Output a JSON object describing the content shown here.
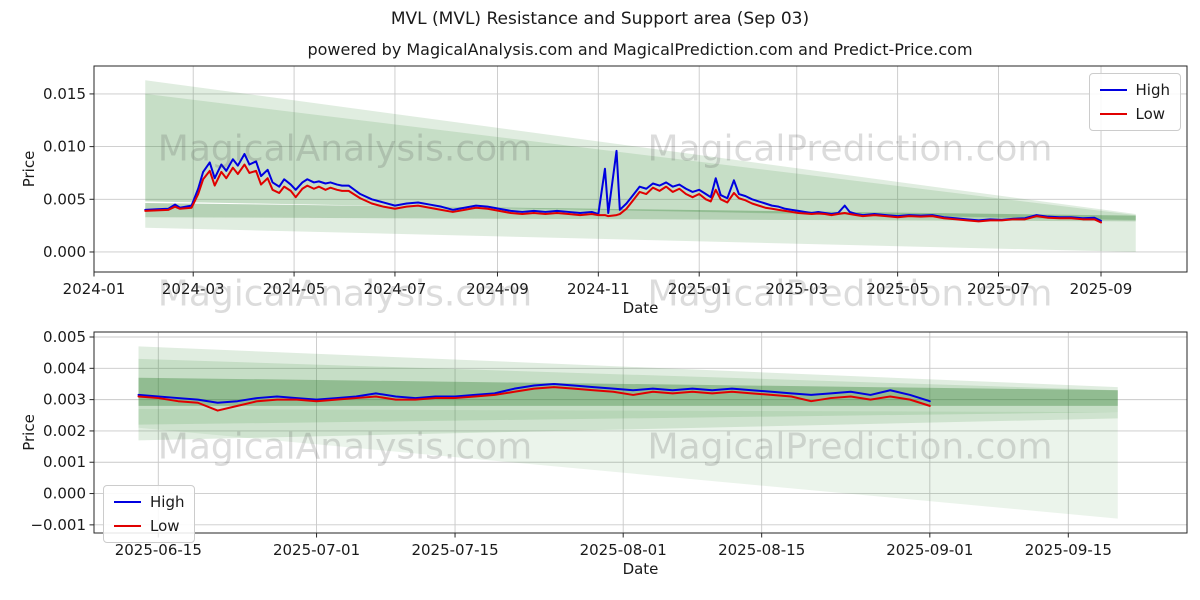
{
  "header": {
    "title": "MVL (MVL) Resistance and Support area (Sep 03)",
    "subtitle": "powered by MagicalAnalysis.com and MagicalPrediction.com and Predict-Price.com"
  },
  "watermarks": {
    "left_text": "MagicalAnalysis.com",
    "right_text": "MagicalPrediction.com"
  },
  "legend": {
    "high_label": "High",
    "low_label": "Low"
  },
  "colors": {
    "high": "#0000e0",
    "low": "#e00000",
    "band_light": "rgba(60,145,60,0.16)",
    "band_faint": "rgba(60,145,60,0.10)",
    "band_dark": "rgba(45,125,45,0.35)",
    "grid": "#c9c9c9",
    "spine": "#262626",
    "text": "#1a1a1a"
  },
  "chart_data": [
    {
      "id": "price-chart-main",
      "type": "line",
      "title": "",
      "xlabel": "Date",
      "ylabel": "Price",
      "grid": true,
      "legend_position": "upper right",
      "x_start": "2024-01-01",
      "x_end": "2025-10-23",
      "ylim": [
        -0.0019,
        0.01765
      ],
      "x_ticks": [
        {
          "date": "2024-01-01",
          "label": "2024-01"
        },
        {
          "date": "2024-03-01",
          "label": "2024-03"
        },
        {
          "date": "2024-05-01",
          "label": "2024-05"
        },
        {
          "date": "2024-07-01",
          "label": "2024-07"
        },
        {
          "date": "2024-09-01",
          "label": "2024-09"
        },
        {
          "date": "2024-11-01",
          "label": "2024-11"
        },
        {
          "date": "2025-01-01",
          "label": "2025-01"
        },
        {
          "date": "2025-03-01",
          "label": "2025-03"
        },
        {
          "date": "2025-05-01",
          "label": "2025-05"
        },
        {
          "date": "2025-07-01",
          "label": "2025-07"
        },
        {
          "date": "2025-09-01",
          "label": "2025-09"
        }
      ],
      "y_ticks": [
        {
          "value": 0.0,
          "label": "0.000"
        },
        {
          "value": 0.005,
          "label": "0.005"
        },
        {
          "value": 0.01,
          "label": "0.010"
        },
        {
          "value": 0.015,
          "label": "0.015"
        }
      ],
      "bands": [
        {
          "fill": "band_light",
          "points": [
            [
              "2024-02-01",
              0.0163
            ],
            [
              "2025-09-22",
              0.0036
            ],
            [
              "2025-09-22",
              0.003
            ],
            [
              "2024-02-01",
              0.0048
            ]
          ]
        },
        {
          "fill": "band_light",
          "points": [
            [
              "2024-02-01",
              0.015
            ],
            [
              "2025-09-22",
              0.0035
            ],
            [
              "2025-09-22",
              0.00305
            ],
            [
              "2024-02-01",
              0.0048
            ]
          ]
        },
        {
          "fill": "band_dark",
          "points": [
            [
              "2024-02-01",
              0.00465
            ],
            [
              "2025-09-22",
              0.00345
            ],
            [
              "2025-09-22",
              0.0029
            ],
            [
              "2024-02-01",
              0.0033
            ]
          ]
        },
        {
          "fill": "band_light",
          "points": [
            [
              "2024-02-01",
              0.0033
            ],
            [
              "2025-09-22",
              0.0029
            ],
            [
              "2025-09-22",
              0.0
            ],
            [
              "2024-02-01",
              0.0023
            ]
          ]
        }
      ],
      "x": [
        "2024-02-01",
        "2024-02-08",
        "2024-02-15",
        "2024-02-19",
        "2024-02-22",
        "2024-02-29",
        "2024-03-04",
        "2024-03-07",
        "2024-03-11",
        "2024-03-14",
        "2024-03-18",
        "2024-03-21",
        "2024-03-25",
        "2024-03-28",
        "2024-04-01",
        "2024-04-04",
        "2024-04-08",
        "2024-04-11",
        "2024-04-15",
        "2024-04-18",
        "2024-04-22",
        "2024-04-25",
        "2024-04-29",
        "2024-05-02",
        "2024-05-06",
        "2024-05-09",
        "2024-05-13",
        "2024-05-16",
        "2024-05-20",
        "2024-05-23",
        "2024-05-27",
        "2024-05-30",
        "2024-06-03",
        "2024-06-10",
        "2024-06-17",
        "2024-06-24",
        "2024-07-01",
        "2024-07-08",
        "2024-07-15",
        "2024-07-22",
        "2024-07-29",
        "2024-08-05",
        "2024-08-12",
        "2024-08-19",
        "2024-08-26",
        "2024-09-02",
        "2024-09-09",
        "2024-09-16",
        "2024-09-23",
        "2024-09-30",
        "2024-10-07",
        "2024-10-14",
        "2024-10-21",
        "2024-10-28",
        "2024-11-01",
        "2024-11-05",
        "2024-11-07",
        "2024-11-12",
        "2024-11-14",
        "2024-11-18",
        "2024-11-22",
        "2024-11-26",
        "2024-11-30",
        "2024-12-04",
        "2024-12-08",
        "2024-12-12",
        "2024-12-16",
        "2024-12-20",
        "2024-12-24",
        "2024-12-28",
        "2025-01-01",
        "2025-01-05",
        "2025-01-08",
        "2025-01-11",
        "2025-01-14",
        "2025-01-18",
        "2025-01-22",
        "2025-01-25",
        "2025-01-29",
        "2025-02-02",
        "2025-02-06",
        "2025-02-10",
        "2025-02-14",
        "2025-02-18",
        "2025-02-22",
        "2025-02-26",
        "2025-03-02",
        "2025-03-06",
        "2025-03-10",
        "2025-03-14",
        "2025-03-18",
        "2025-03-22",
        "2025-03-26",
        "2025-03-30",
        "2025-04-02",
        "2025-04-06",
        "2025-04-10",
        "2025-04-17",
        "2025-04-24",
        "2025-05-01",
        "2025-05-08",
        "2025-05-15",
        "2025-05-22",
        "2025-05-29",
        "2025-06-05",
        "2025-06-12",
        "2025-06-19",
        "2025-06-26",
        "2025-07-03",
        "2025-07-10",
        "2025-07-17",
        "2025-07-24",
        "2025-07-31",
        "2025-08-07",
        "2025-08-14",
        "2025-08-21",
        "2025-08-28",
        "2025-09-01"
      ],
      "series": [
        {
          "name": "High",
          "color_key": "high",
          "y": [
            0.004,
            0.00405,
            0.0041,
            0.0045,
            0.0042,
            0.0044,
            0.006,
            0.0076,
            0.0085,
            0.007,
            0.0083,
            0.0077,
            0.0088,
            0.0082,
            0.0093,
            0.0083,
            0.0086,
            0.0072,
            0.0078,
            0.0066,
            0.0062,
            0.0069,
            0.0064,
            0.0059,
            0.0066,
            0.0069,
            0.0066,
            0.0067,
            0.0065,
            0.0066,
            0.0064,
            0.0063,
            0.0063,
            0.0055,
            0.005,
            0.0047,
            0.0044,
            0.0046,
            0.0047,
            0.0045,
            0.0043,
            0.004,
            0.0042,
            0.0044,
            0.0043,
            0.0041,
            0.0039,
            0.0038,
            0.0039,
            0.0038,
            0.0039,
            0.0038,
            0.0037,
            0.0038,
            0.0036,
            0.0079,
            0.0037,
            0.0096,
            0.004,
            0.0046,
            0.0054,
            0.0062,
            0.006,
            0.0065,
            0.0063,
            0.0066,
            0.0062,
            0.0064,
            0.006,
            0.0057,
            0.0059,
            0.0055,
            0.0052,
            0.007,
            0.0054,
            0.0051,
            0.0068,
            0.0055,
            0.0053,
            0.005,
            0.0048,
            0.0046,
            0.0044,
            0.0043,
            0.0041,
            0.004,
            0.0039,
            0.0038,
            0.0037,
            0.0038,
            0.0037,
            0.0036,
            0.0037,
            0.0044,
            0.0038,
            0.0036,
            0.0035,
            0.0036,
            0.0035,
            0.0034,
            0.0035,
            0.00345,
            0.0035,
            0.0033,
            0.0032,
            0.0031,
            0.003,
            0.0031,
            0.00305,
            0.00315,
            0.0032,
            0.0035,
            0.00335,
            0.0033,
            0.0033,
            0.0032,
            0.00325,
            0.00295
          ]
        },
        {
          "name": "Low",
          "color_key": "low",
          "y": [
            0.0039,
            0.00395,
            0.004,
            0.0043,
            0.0041,
            0.0042,
            0.0055,
            0.0069,
            0.0077,
            0.0063,
            0.0076,
            0.007,
            0.008,
            0.0074,
            0.0083,
            0.0075,
            0.0077,
            0.0064,
            0.007,
            0.0059,
            0.0056,
            0.0062,
            0.0058,
            0.0052,
            0.006,
            0.0063,
            0.006,
            0.0062,
            0.0059,
            0.0061,
            0.0059,
            0.0058,
            0.0058,
            0.0051,
            0.0046,
            0.0043,
            0.0041,
            0.0043,
            0.0044,
            0.0042,
            0.004,
            0.0038,
            0.004,
            0.0042,
            0.0041,
            0.0039,
            0.0037,
            0.0036,
            0.0037,
            0.0036,
            0.0037,
            0.0036,
            0.0035,
            0.0036,
            0.0035,
            0.0035,
            0.0034,
            0.0035,
            0.0036,
            0.0041,
            0.0049,
            0.0057,
            0.0055,
            0.0061,
            0.0058,
            0.0062,
            0.0057,
            0.006,
            0.0055,
            0.0052,
            0.0055,
            0.005,
            0.0048,
            0.0059,
            0.005,
            0.0047,
            0.0056,
            0.0051,
            0.0049,
            0.0046,
            0.0044,
            0.0042,
            0.0041,
            0.004,
            0.0039,
            0.0038,
            0.0037,
            0.00365,
            0.0036,
            0.00365,
            0.0036,
            0.0035,
            0.0036,
            0.0037,
            0.0036,
            0.0035,
            0.0034,
            0.0035,
            0.0034,
            0.0033,
            0.0034,
            0.00335,
            0.0034,
            0.0032,
            0.0031,
            0.003,
            0.0029,
            0.003,
            0.003,
            0.0031,
            0.0031,
            0.0034,
            0.00325,
            0.0032,
            0.0032,
            0.0031,
            0.0031,
            0.0028
          ]
        }
      ]
    },
    {
      "id": "price-chart-zoom",
      "type": "line",
      "title": "",
      "xlabel": "Date",
      "ylabel": "Price",
      "grid": true,
      "legend_position": "lower left",
      "x_start": "2025-06-08T12:00:00Z",
      "x_end": "2025-09-27",
      "ylim": [
        -0.00126,
        0.00516
      ],
      "x_ticks": [
        {
          "date": "2025-06-15",
          "label": "2025-06-15"
        },
        {
          "date": "2025-07-01",
          "label": "2025-07-01"
        },
        {
          "date": "2025-07-15",
          "label": "2025-07-15"
        },
        {
          "date": "2025-08-01",
          "label": "2025-08-01"
        },
        {
          "date": "2025-08-15",
          "label": "2025-08-15"
        },
        {
          "date": "2025-09-01",
          "label": "2025-09-01"
        },
        {
          "date": "2025-09-15",
          "label": "2025-09-15"
        }
      ],
      "y_ticks": [
        {
          "value": -0.001,
          "label": "−0.001"
        },
        {
          "value": 0.0,
          "label": "0.000"
        },
        {
          "value": 0.001,
          "label": "0.001"
        },
        {
          "value": 0.002,
          "label": "0.002"
        },
        {
          "value": 0.003,
          "label": "0.003"
        },
        {
          "value": 0.004,
          "label": "0.004"
        },
        {
          "value": 0.005,
          "label": "0.005"
        }
      ],
      "bands": [
        {
          "fill": "band_light",
          "points": [
            [
              "2025-06-13",
              0.0047
            ],
            [
              "2025-09-20",
              0.0034
            ],
            [
              "2025-09-20",
              0.0024
            ],
            [
              "2025-06-13",
              0.0017
            ]
          ]
        },
        {
          "fill": "band_light",
          "points": [
            [
              "2025-06-13",
              0.0043
            ],
            [
              "2025-09-20",
              0.0033
            ],
            [
              "2025-09-20",
              0.0026
            ],
            [
              "2025-06-13",
              0.0022
            ]
          ]
        },
        {
          "fill": "band_dark",
          "points": [
            [
              "2025-06-13",
              0.0037
            ],
            [
              "2025-09-20",
              0.0033
            ],
            [
              "2025-09-20",
              0.0028
            ],
            [
              "2025-06-13",
              0.0028
            ]
          ]
        },
        {
          "fill": "band_faint",
          "points": [
            [
              "2025-06-13",
              0.0027
            ],
            [
              "2025-09-20",
              0.0026
            ],
            [
              "2025-09-20",
              -0.0008
            ],
            [
              "2025-06-13",
              0.0021
            ]
          ]
        }
      ],
      "x": [
        "2025-06-13",
        "2025-06-15",
        "2025-06-17",
        "2025-06-19",
        "2025-06-21",
        "2025-06-23",
        "2025-06-25",
        "2025-06-27",
        "2025-06-29",
        "2025-07-01",
        "2025-07-03",
        "2025-07-05",
        "2025-07-07",
        "2025-07-09",
        "2025-07-11",
        "2025-07-13",
        "2025-07-15",
        "2025-07-17",
        "2025-07-19",
        "2025-07-21",
        "2025-07-23",
        "2025-07-25",
        "2025-07-27",
        "2025-07-29",
        "2025-07-31",
        "2025-08-02",
        "2025-08-04",
        "2025-08-06",
        "2025-08-08",
        "2025-08-10",
        "2025-08-12",
        "2025-08-14",
        "2025-08-16",
        "2025-08-18",
        "2025-08-20",
        "2025-08-22",
        "2025-08-24",
        "2025-08-26",
        "2025-08-28",
        "2025-08-30",
        "2025-09-01"
      ],
      "series": [
        {
          "name": "High",
          "color_key": "high",
          "y": [
            0.00315,
            0.0031,
            0.00305,
            0.003,
            0.0029,
            0.00295,
            0.00305,
            0.0031,
            0.00305,
            0.003,
            0.00305,
            0.0031,
            0.0032,
            0.0031,
            0.00305,
            0.0031,
            0.0031,
            0.00315,
            0.0032,
            0.00335,
            0.00345,
            0.0035,
            0.00345,
            0.0034,
            0.00335,
            0.0033,
            0.00335,
            0.0033,
            0.00335,
            0.0033,
            0.00335,
            0.0033,
            0.00325,
            0.0032,
            0.00315,
            0.0032,
            0.00325,
            0.00315,
            0.0033,
            0.00315,
            0.00295
          ]
        },
        {
          "name": "Low",
          "color_key": "low",
          "y": [
            0.0031,
            0.00305,
            0.00295,
            0.0029,
            0.00265,
            0.0028,
            0.00295,
            0.003,
            0.003,
            0.00295,
            0.003,
            0.00305,
            0.0031,
            0.003,
            0.003,
            0.00305,
            0.00305,
            0.0031,
            0.00315,
            0.00325,
            0.00335,
            0.0034,
            0.00335,
            0.0033,
            0.00325,
            0.00315,
            0.00325,
            0.0032,
            0.00325,
            0.0032,
            0.00325,
            0.0032,
            0.00315,
            0.0031,
            0.00295,
            0.00305,
            0.0031,
            0.003,
            0.0031,
            0.003,
            0.0028
          ]
        }
      ]
    }
  ]
}
